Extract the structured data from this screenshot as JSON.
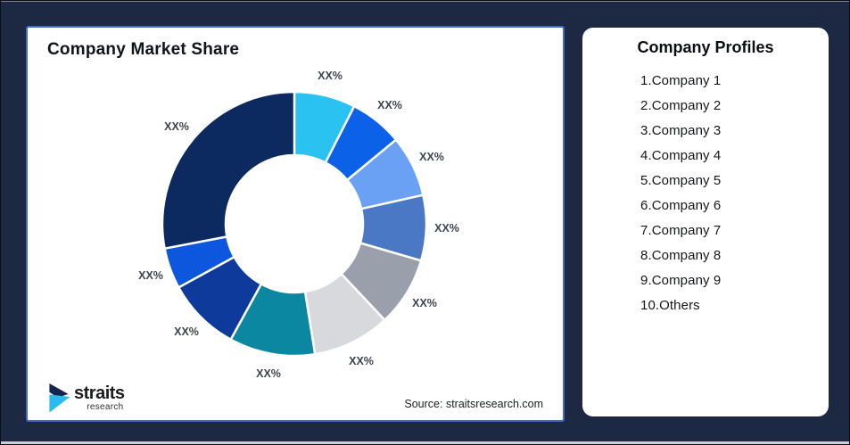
{
  "page": {
    "background_color": "#1D2942"
  },
  "chart_card": {
    "title": "Company Market Share",
    "source": "Source: straitsresearch.com",
    "border_color": "#3F6CCB"
  },
  "chart_data": {
    "type": "pie",
    "variant": "donut",
    "title": "Company Market Share",
    "start_angle_deg": 0,
    "direction": "clockwise",
    "inner_radius_ratio": 0.52,
    "legend": "none",
    "label_color": "#3D4450",
    "slices": [
      {
        "label": "XX%",
        "value": 7.5,
        "color": "#29C2F1"
      },
      {
        "label": "XX%",
        "value": 6.5,
        "color": "#0B62E8"
      },
      {
        "label": "XX%",
        "value": 7.5,
        "color": "#6AA1F4"
      },
      {
        "label": "XX%",
        "value": 8.0,
        "color": "#4A78C4"
      },
      {
        "label": "XX%",
        "value": 8.5,
        "color": "#99A0AC"
      },
      {
        "label": "XX%",
        "value": 9.5,
        "color": "#D7D9DD"
      },
      {
        "label": "XX%",
        "value": 10.5,
        "color": "#0C87A2"
      },
      {
        "label": "XX%",
        "value": 9.0,
        "color": "#0E3A9B"
      },
      {
        "label": "XX%",
        "value": 5.0,
        "color": "#0D57DF"
      },
      {
        "label": "XX%",
        "value": 28.0,
        "color": "#0C2960"
      }
    ],
    "source": "Source: straitsresearch.com"
  },
  "logo": {
    "name": "straits",
    "sub": "research",
    "mark_navy": "#16254E",
    "mark_cyan": "#29BAEF"
  },
  "profiles_card": {
    "title": "Company Profiles",
    "items": [
      "1.Company 1",
      "2.Company 2",
      "3.Company 3",
      "4.Company 4",
      "5.Company 5",
      "6.Company 6",
      "7.Company 7",
      "8.Company 8",
      "9.Company 9",
      "10.Others"
    ]
  }
}
